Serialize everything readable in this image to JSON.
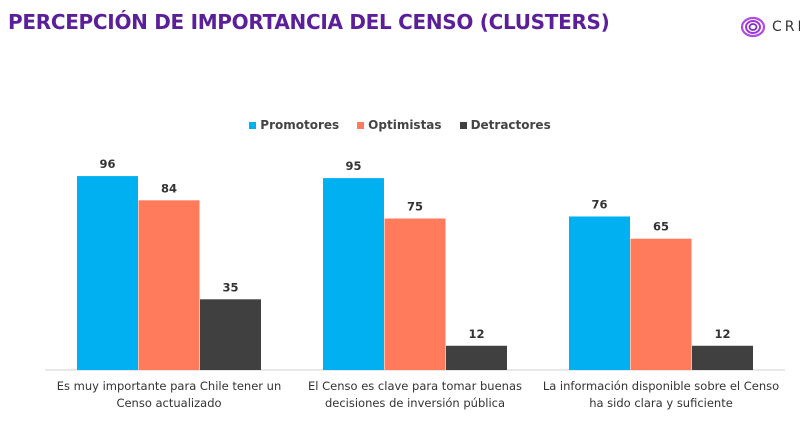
{
  "title": "PERCEPCIÓN DE IMPORTANCIA DEL CENSO (CLUSTERS)",
  "logo_text": "CRI",
  "chart_data": {
    "type": "bar",
    "categories": [
      "Es muy importante para Chile tener un Censo actualizado",
      "El Censo es clave para tomar buenas decisiones de inversión pública",
      "La información disponible sobre el Censo ha sido clara y suficiente"
    ],
    "series": [
      {
        "name": "Promotores",
        "values": [
          96,
          95,
          76
        ],
        "color": "#00b0f0"
      },
      {
        "name": "Optimistas",
        "values": [
          84,
          75,
          65
        ],
        "color": "#ff7b5c"
      },
      {
        "name": "Detractores",
        "values": [
          35,
          12,
          12
        ],
        "color": "#404040"
      }
    ],
    "ylim": [
      0,
      100
    ],
    "legend": "top-center",
    "grid": false
  }
}
